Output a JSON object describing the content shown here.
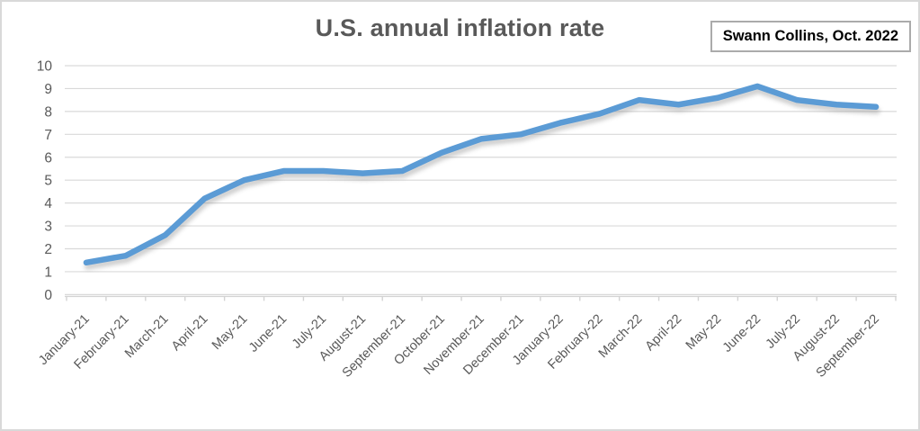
{
  "title": "U.S. annual inflation rate",
  "annotation": {
    "label": "Swann Collins, Oct. 2022"
  },
  "colors": {
    "line": "#5b9bd5",
    "line_shadow": "#8c8c8c",
    "grid": "#d9d9d9",
    "axis": "#d3d3d3",
    "tick_text": "#595959",
    "title_text": "#595959",
    "annotation_border": "#ababab",
    "frame_border": "#d9d9d9",
    "background": "#ffffff"
  },
  "chart_data": {
    "type": "line",
    "title": "U.S. annual inflation rate",
    "annotation": "Swann Collins, Oct. 2022",
    "categories": [
      "January-21",
      "February-21",
      "March-21",
      "April-21",
      "May-21",
      "June-21",
      "July-21",
      "August-21",
      "September-21",
      "October-21",
      "November-21",
      "December-21",
      "January-22",
      "February-22",
      "March-22",
      "April-22",
      "May-22",
      "June-22",
      "July-22",
      "August-22",
      "September-22"
    ],
    "series": [
      {
        "name": "U.S. annual inflation rate (%)",
        "values": [
          1.4,
          1.7,
          2.6,
          4.2,
          5.0,
          5.4,
          5.4,
          5.3,
          5.4,
          6.2,
          6.8,
          7.0,
          7.5,
          7.9,
          8.5,
          8.3,
          8.6,
          9.1,
          8.5,
          8.3,
          8.2
        ]
      }
    ],
    "xlabel": "",
    "ylabel": "",
    "ylim": [
      0,
      10
    ],
    "yticks": [
      0,
      1,
      2,
      3,
      4,
      5,
      6,
      7,
      8,
      9,
      10
    ],
    "grid": true,
    "legend_position": "none",
    "x_label_rotation_deg": -45
  }
}
